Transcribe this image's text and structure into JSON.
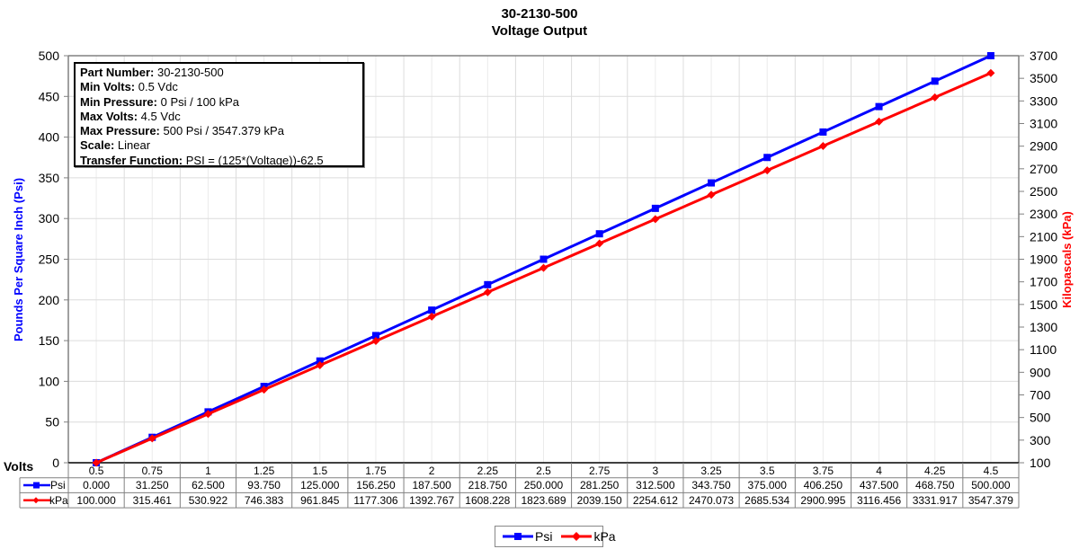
{
  "title": {
    "line1": "30-2130-500",
    "line2": "Voltage Output"
  },
  "info_box": {
    "rows": [
      {
        "label": "Part Number:",
        "value": " 30-2130-500"
      },
      {
        "label": "Min Volts:",
        "value": " 0.5 Vdc"
      },
      {
        "label": "Min Pressure:",
        "value": " 0 Psi / 100 kPa"
      },
      {
        "label": "Max Volts:",
        "value": " 4.5 Vdc"
      },
      {
        "label": "Max Pressure:",
        "value": " 500 Psi / 3547.379 kPa"
      },
      {
        "label": "Scale:",
        "value": " Linear"
      },
      {
        "label": "Transfer Function:",
        "value": " PSI = (125*(Voltage))-62.5"
      }
    ]
  },
  "colors": {
    "psi": "#0000FF",
    "kpa": "#FF0000",
    "grid": "#DCDCDC",
    "axis": "#808080"
  },
  "chart_data": {
    "type": "line",
    "title": "30-2130-500 Voltage Output",
    "xlabel": "Volts",
    "ylabel": "Pounds Per Square Inch (Psi)",
    "y2label": "Kilopascals (kPa)",
    "categories": [
      "0.5",
      "0.75",
      "1",
      "1.25",
      "1.5",
      "1.75",
      "2",
      "2.25",
      "2.5",
      "2.75",
      "3",
      "3.25",
      "3.5",
      "3.75",
      "4",
      "4.25",
      "4.5"
    ],
    "x": [
      0.5,
      0.75,
      1,
      1.25,
      1.5,
      1.75,
      2,
      2.25,
      2.5,
      2.75,
      3,
      3.25,
      3.5,
      3.75,
      4,
      4.25,
      4.5
    ],
    "series": [
      {
        "name": "Psi",
        "axis": "left",
        "color": "#0000FF",
        "marker": "square",
        "values": [
          0.0,
          31.25,
          62.5,
          93.75,
          125.0,
          156.25,
          187.5,
          218.75,
          250.0,
          281.25,
          312.5,
          343.75,
          375.0,
          406.25,
          437.5,
          468.75,
          500.0
        ],
        "labels": [
          "0.000",
          "31.250",
          "62.500",
          "93.750",
          "125.000",
          "156.250",
          "187.500",
          "218.750",
          "250.000",
          "281.250",
          "312.500",
          "343.750",
          "375.000",
          "406.250",
          "437.500",
          "468.750",
          "500.000"
        ]
      },
      {
        "name": "kPa",
        "axis": "right",
        "color": "#FF0000",
        "marker": "diamond",
        "values": [
          100.0,
          315.461,
          530.922,
          746.383,
          961.845,
          1177.306,
          1392.767,
          1608.228,
          1823.689,
          2039.15,
          2254.612,
          2470.073,
          2685.534,
          2900.995,
          3116.456,
          3331.917,
          3547.379
        ],
        "labels": [
          "100.000",
          "315.461",
          "530.922",
          "746.383",
          "961.845",
          "1177.306",
          "1392.767",
          "1608.228",
          "1823.689",
          "2039.150",
          "2254.612",
          "2470.073",
          "2685.534",
          "2900.995",
          "3116.456",
          "3331.917",
          "3547.379"
        ]
      }
    ],
    "ylim": [
      0,
      500
    ],
    "y_ticks": [
      0,
      50,
      100,
      150,
      200,
      250,
      300,
      350,
      400,
      450,
      500
    ],
    "y2lim": [
      100,
      3700
    ],
    "y2_ticks": [
      100,
      300,
      500,
      700,
      900,
      1100,
      1300,
      1500,
      1700,
      1900,
      2100,
      2300,
      2500,
      2700,
      2900,
      3100,
      3300,
      3500,
      3700
    ],
    "grid": true,
    "legend_position": "bottom",
    "data_table": true
  },
  "legend": {
    "items": [
      {
        "label": "Psi"
      },
      {
        "label": "kPa"
      }
    ]
  }
}
